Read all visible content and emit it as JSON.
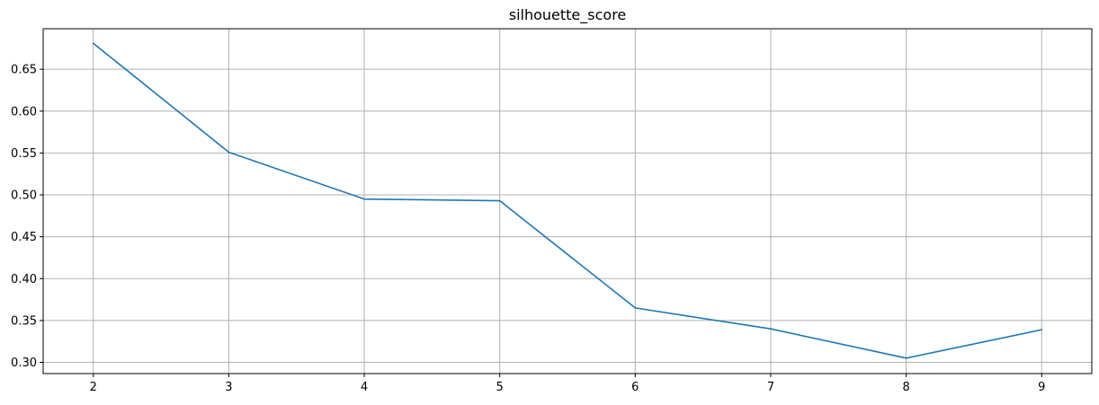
{
  "chart_data": {
    "type": "line",
    "title": "silhouette_score",
    "xlabel": "",
    "ylabel": "",
    "x": [
      2,
      3,
      4,
      5,
      6,
      7,
      8,
      9
    ],
    "series": [
      {
        "values": [
          0.681,
          0.551,
          0.495,
          0.493,
          0.365,
          0.34,
          0.305,
          0.339
        ]
      }
    ],
    "xlim": [
      1.63,
      9.37
    ],
    "ylim": [
      0.2866,
      0.6984
    ],
    "xticks": [
      2,
      3,
      4,
      5,
      6,
      7,
      8,
      9
    ],
    "xtick_labels": [
      "2",
      "3",
      "4",
      "5",
      "6",
      "7",
      "8",
      "9"
    ],
    "yticks": [
      0.3,
      0.35,
      0.4,
      0.45,
      0.5,
      0.55,
      0.6,
      0.65
    ],
    "ytick_labels": [
      "0.30",
      "0.35",
      "0.40",
      "0.45",
      "0.50",
      "0.55",
      "0.60",
      "0.65"
    ],
    "grid": true,
    "legend": "none",
    "line_color": "#1f77b4",
    "grid_color": "#b0b0b0"
  }
}
